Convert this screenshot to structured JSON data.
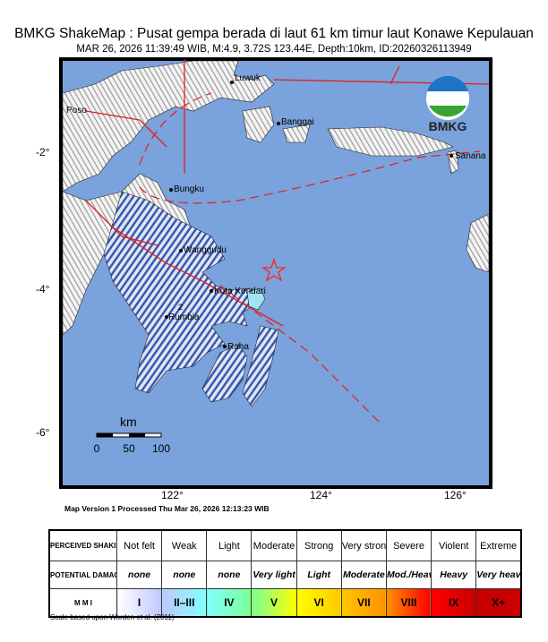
{
  "header": {
    "title": "BMKG ShakeMap : Pusat gempa berada di laut 61 km timur laut Konawe Kepulauan",
    "subtitle": "MAR 26, 2026 11:39:49 WIB, M:4.9, 3.72S 123.44E, Depth:10km, ID:20260326113949"
  },
  "map": {
    "logo_text": "BMKG",
    "colors": {
      "sea": "#7aa2dc",
      "land": "#ffffff",
      "fault": "#e0201c",
      "epicenter": "#ff2020",
      "intensity": "#3a5ab0"
    },
    "epicenter_icon": "star-icon",
    "places": [
      {
        "name": "Luwuk"
      },
      {
        "name": "Poso"
      },
      {
        "name": "Banggai"
      },
      {
        "name": "Sanana"
      },
      {
        "name": "Bungku"
      },
      {
        "name": "Wanggudu"
      },
      {
        "name": "Kota Kendari"
      },
      {
        "name": "Rumbia"
      },
      {
        "name": "Raha"
      }
    ],
    "contour_label": "2",
    "scalebar": {
      "unit": "km",
      "ticks": [
        "0",
        "50",
        "100"
      ]
    },
    "lat_ticks": [
      "-2°",
      "-4°",
      "-6°"
    ],
    "lon_ticks": [
      "122°",
      "124°",
      "126°"
    ]
  },
  "version_text": "Map Version 1 Processed Thu Mar 26, 2026 12:13:23 WIB",
  "legend": {
    "row_headers": [
      "PERCEIVED SHAKING",
      "POTENTIAL DAMAGE",
      "M M I"
    ],
    "columns": [
      {
        "shaking": "Not felt",
        "damage": "none",
        "mmi": "I",
        "color": "#ffffff"
      },
      {
        "shaking": "Weak",
        "damage": "none",
        "mmi": "II–III",
        "color": "#bfc8ff"
      },
      {
        "shaking": "Light",
        "damage": "none",
        "mmi": "IV",
        "color": "#80ffff"
      },
      {
        "shaking": "Moderate",
        "damage": "Very light",
        "mmi": "V",
        "color": "#7aff93"
      },
      {
        "shaking": "Strong",
        "damage": "Light",
        "mmi": "VI",
        "color": "#ffff00"
      },
      {
        "shaking": "Very strong",
        "damage": "Moderate",
        "mmi": "VII",
        "color": "#ffc800"
      },
      {
        "shaking": "Severe",
        "damage": "Mod./Heavy",
        "mmi": "VIII",
        "color": "#ff9100"
      },
      {
        "shaking": "Violent",
        "damage": "Heavy",
        "mmi": "IX",
        "color": "#ff0000"
      },
      {
        "shaking": "Extreme",
        "damage": "Very heavy",
        "mmi": "X+",
        "color": "#c80000"
      }
    ],
    "note": "Scale based upon Worden et al. (2011)"
  }
}
